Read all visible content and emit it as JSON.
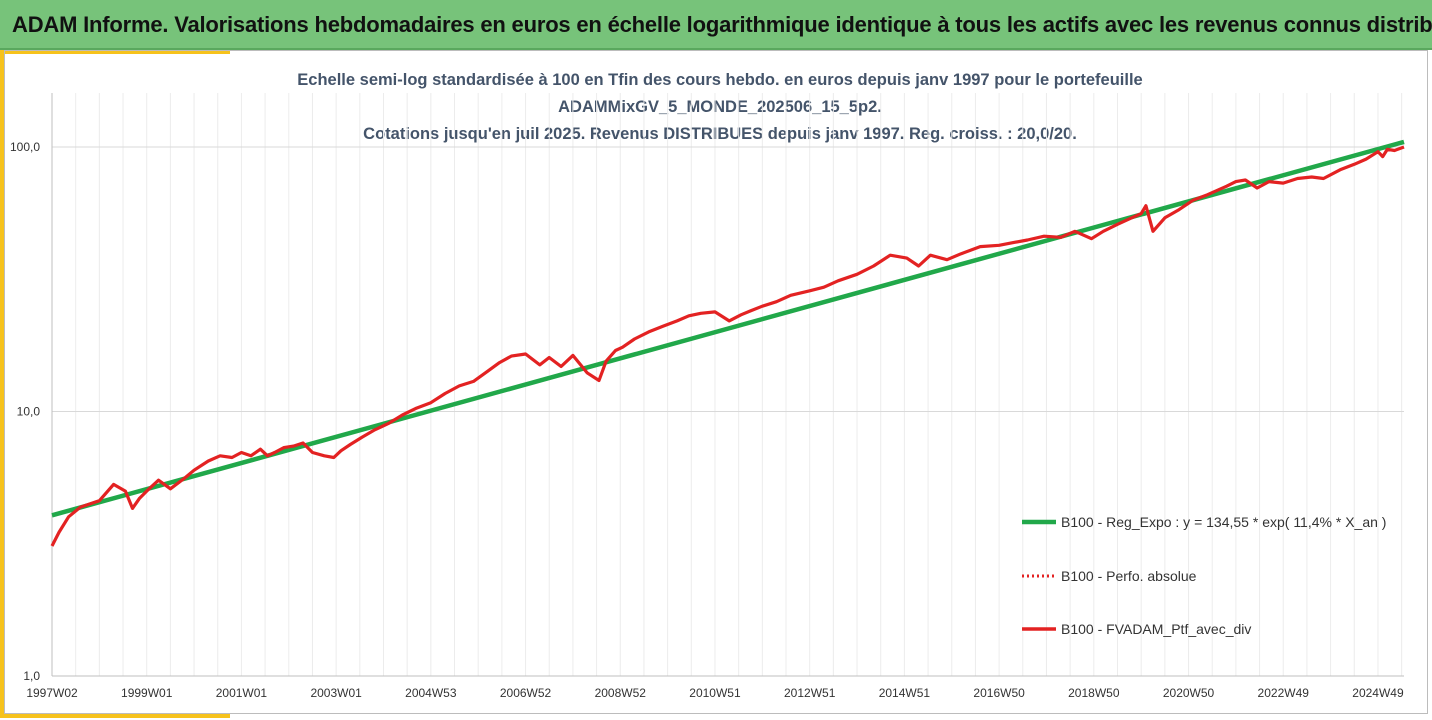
{
  "header": {
    "title": "ADAM Informe. Valorisations hebdomadaires en euros en échelle logarithmique identique à tous les actifs avec les revenus connus distribués"
  },
  "chart_data": {
    "type": "line",
    "title_lines": [
      "Echelle semi-log standardisée à 100 en Tfin des cours hebdo.  en euros depuis janv 1997 pour le portefeuille",
      "ADAMMixGV_5_MONDE_202506_15_5p2.",
      "Cotations  jusqu'en juil 2025. Revenus DISTRIBUES depuis janv 1997. Reg. croiss. : 20,0/20."
    ],
    "y_scale": "log",
    "ylim": [
      1,
      160
    ],
    "y_ticks": [
      {
        "value": 1,
        "label": "1,0"
      },
      {
        "value": 10,
        "label": "10,0"
      },
      {
        "value": 100,
        "label": "100,0"
      }
    ],
    "xlim": [
      1997.0,
      2025.55
    ],
    "x_ticks": [
      {
        "value": 1997.0,
        "label": "1997W02"
      },
      {
        "value": 1999.0,
        "label": "1999W01"
      },
      {
        "value": 2001.0,
        "label": "2001W01"
      },
      {
        "value": 2003.0,
        "label": "2003W01"
      },
      {
        "value": 2005.0,
        "label": "2004W53"
      },
      {
        "value": 2007.0,
        "label": "2006W52"
      },
      {
        "value": 2009.0,
        "label": "2008W52"
      },
      {
        "value": 2011.0,
        "label": "2010W51"
      },
      {
        "value": 2013.0,
        "label": "2012W51"
      },
      {
        "value": 2015.0,
        "label": "2014W51"
      },
      {
        "value": 2017.0,
        "label": "2016W50"
      },
      {
        "value": 2019.0,
        "label": "2018W50"
      },
      {
        "value": 2021.0,
        "label": "2020W50"
      },
      {
        "value": 2023.0,
        "label": "2022W49"
      },
      {
        "value": 2025.0,
        "label": "2024W49"
      }
    ],
    "grid": {
      "vertical": true,
      "horizontal": true
    },
    "legend_position": "right",
    "colors": {
      "regression": "#21a84a",
      "absolute": "#e32222",
      "portfolio": "#e32222"
    },
    "series": [
      {
        "name": "B100 - Reg_Expo : y = 134,55 * exp( 11,4% *  X_an )",
        "style": "solid-thick",
        "x": [
          1997.0,
          2025.55
        ],
        "y": [
          4.05,
          104.5
        ]
      },
      {
        "name": "B100 - Perfo. absolue",
        "style": "dotted",
        "x": [],
        "y": []
      },
      {
        "name": "B100 - FVADAM_Ptf_avec_div",
        "style": "solid",
        "x": [
          1997.0,
          1997.15,
          1997.35,
          1997.6,
          1998.0,
          1998.3,
          1998.55,
          1998.7,
          1998.85,
          1999.0,
          1999.25,
          1999.5,
          1999.8,
          2000.0,
          2000.3,
          2000.55,
          2000.8,
          2001.0,
          2001.2,
          2001.4,
          2001.55,
          2001.7,
          2001.9,
          2002.1,
          2002.3,
          2002.5,
          2002.75,
          2002.95,
          2003.1,
          2003.3,
          2003.55,
          2003.8,
          2004.1,
          2004.4,
          2004.7,
          2005.0,
          2005.3,
          2005.6,
          2005.9,
          2006.2,
          2006.45,
          2006.7,
          2007.0,
          2007.3,
          2007.5,
          2007.75,
          2008.0,
          2008.3,
          2008.55,
          2008.7,
          2008.9,
          2009.05,
          2009.3,
          2009.6,
          2009.9,
          2010.2,
          2010.45,
          2010.7,
          2011.0,
          2011.3,
          2011.55,
          2011.75,
          2012.0,
          2012.3,
          2012.6,
          2013.0,
          2013.3,
          2013.6,
          2014.0,
          2014.35,
          2014.7,
          2015.05,
          2015.3,
          2015.55,
          2015.9,
          2016.2,
          2016.6,
          2017.0,
          2017.3,
          2017.6,
          2017.95,
          2018.3,
          2018.6,
          2018.95,
          2019.2,
          2019.5,
          2019.8,
          2020.0,
          2020.1,
          2020.25,
          2020.5,
          2020.8,
          2021.1,
          2021.4,
          2021.8,
          2022.0,
          2022.2,
          2022.45,
          2022.7,
          2023.0,
          2023.3,
          2023.6,
          2023.85,
          2024.2,
          2024.5,
          2024.75,
          2025.0,
          2025.1,
          2025.2,
          2025.35,
          2025.55
        ],
        "y": [
          3.1,
          3.5,
          4.0,
          4.35,
          4.6,
          5.3,
          5.0,
          4.3,
          4.7,
          5.0,
          5.5,
          5.1,
          5.6,
          6.0,
          6.5,
          6.8,
          6.7,
          7.0,
          6.8,
          7.2,
          6.8,
          7.0,
          7.3,
          7.4,
          7.6,
          7.0,
          6.8,
          6.7,
          7.1,
          7.5,
          8.0,
          8.5,
          9.0,
          9.7,
          10.3,
          10.8,
          11.7,
          12.5,
          13.0,
          14.2,
          15.3,
          16.2,
          16.5,
          15.0,
          16.0,
          14.8,
          16.3,
          14.0,
          13.1,
          15.5,
          17.0,
          17.5,
          18.8,
          20.0,
          21.0,
          22.0,
          23.0,
          23.5,
          23.8,
          22.0,
          23.2,
          24.0,
          25.0,
          26.0,
          27.5,
          28.6,
          29.5,
          31.2,
          33.0,
          35.5,
          39.0,
          38.0,
          35.5,
          39.0,
          37.5,
          39.5,
          42.0,
          42.5,
          43.5,
          44.5,
          46.0,
          45.5,
          48.0,
          45.0,
          48.0,
          51.0,
          54.0,
          56.0,
          60.0,
          48.0,
          54.0,
          58.0,
          63.0,
          66.0,
          71.0,
          74.0,
          75.0,
          70.0,
          74.0,
          73.0,
          76.0,
          77.0,
          76.0,
          82.0,
          86.0,
          90.0,
          96.0,
          92.0,
          98.0,
          97.0,
          100.0
        ]
      }
    ]
  }
}
